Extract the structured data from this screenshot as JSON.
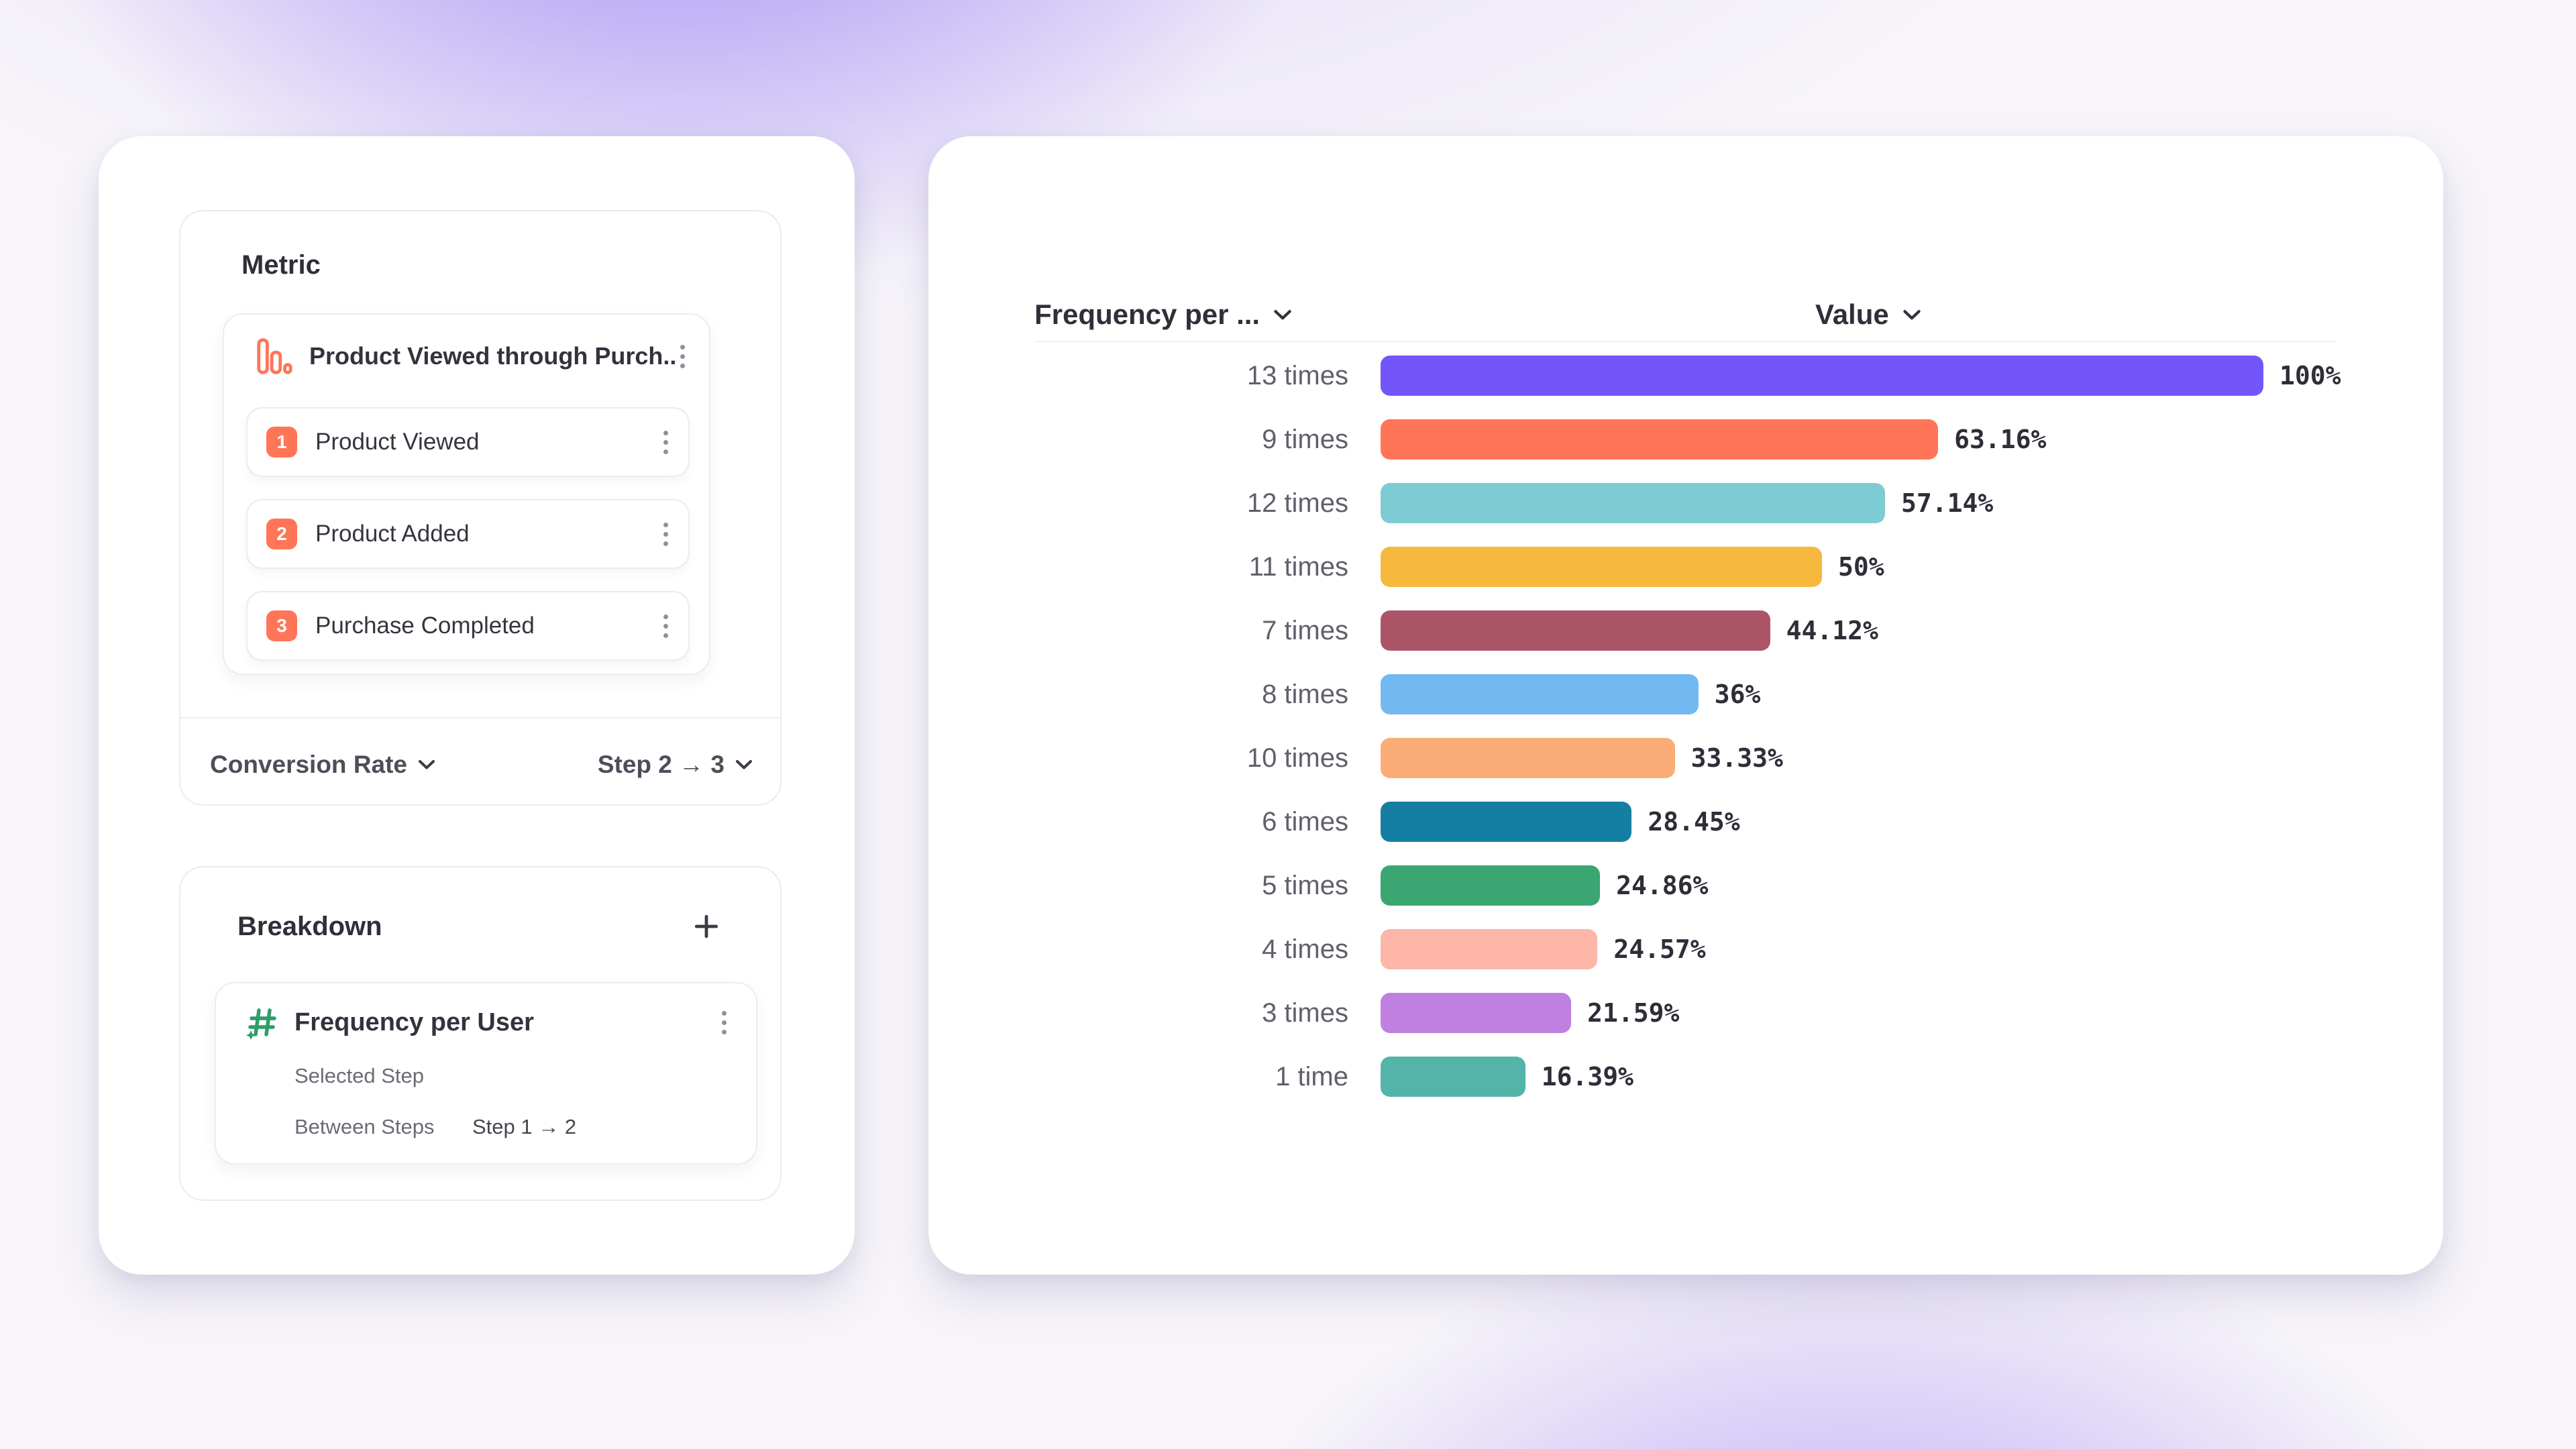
{
  "left_card": {
    "metric_section": {
      "title": "Metric",
      "funnel": {
        "title": "Product Viewed through Purch...",
        "steps": [
          {
            "number": "1",
            "label": "Product Viewed"
          },
          {
            "number": "2",
            "label": "Product Added"
          },
          {
            "number": "3",
            "label": "Purchase Completed"
          }
        ]
      },
      "measure_dropdown": "Conversion Rate",
      "step_range_dropdown": "Step 2 → 3"
    },
    "breakdown_section": {
      "title": "Breakdown",
      "item": {
        "title": "Frequency per User",
        "row_selected_step": "Selected Step",
        "row_between_steps": "Between Steps",
        "between_steps_value": "Step 1 → 2"
      }
    }
  },
  "chart_card": {
    "category_header": "Frequency per ...",
    "value_header": "Value"
  },
  "chart_data": {
    "type": "bar",
    "orientation": "horizontal",
    "title": "",
    "xlabel": "Value",
    "ylabel": "Frequency per ...",
    "xlim": [
      0,
      100
    ],
    "grid": false,
    "legend": "none",
    "categories": [
      "13 times",
      "9 times",
      "12 times",
      "11 times",
      "7 times",
      "8 times",
      "10 times",
      "6 times",
      "5 times",
      "4 times",
      "3 times",
      "1 time"
    ],
    "values": [
      100,
      63.16,
      57.14,
      50,
      44.12,
      36,
      33.33,
      28.45,
      24.86,
      24.57,
      21.59,
      16.39
    ],
    "value_labels": [
      "100%",
      "63.16%",
      "57.14%",
      "50%",
      "44.12%",
      "36%",
      "33.33%",
      "28.45%",
      "24.86%",
      "24.57%",
      "21.59%",
      "16.39%"
    ],
    "bar_colors": [
      "#7355FA",
      "#FF7557",
      "#7ECCD3",
      "#F6B83D",
      "#AC5569",
      "#72B9F1",
      "#FAAD76",
      "#157FA3",
      "#3BA671",
      "#FDB6A8",
      "#BF80E0",
      "#54B4A9"
    ]
  },
  "colors": {
    "accent_orange": "#FF7557",
    "hash_icon_green": "#2D9E68",
    "bar_purple": "#7355FA",
    "text_dark": "#2F2F3A",
    "text_grey": "#60606B"
  }
}
